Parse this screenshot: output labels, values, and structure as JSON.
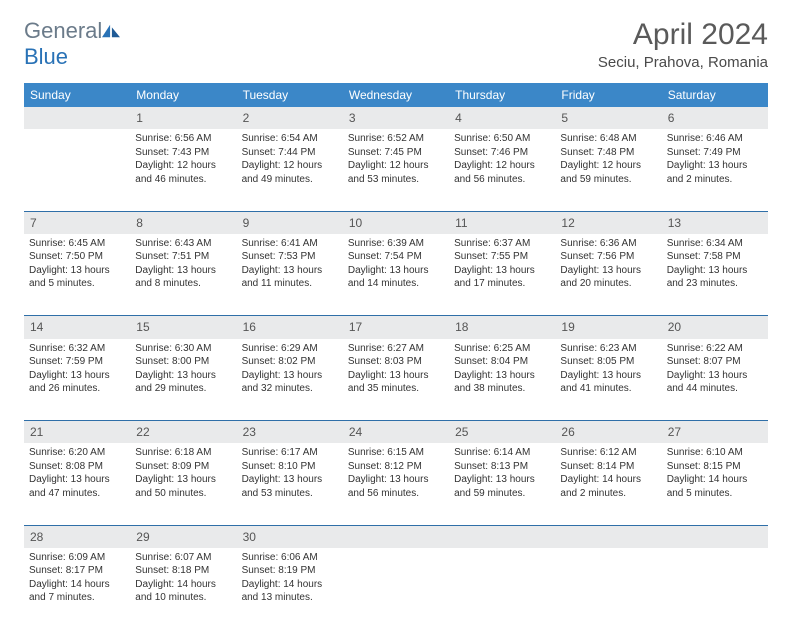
{
  "logo": {
    "word1": "General",
    "word2": "Blue"
  },
  "title": "April 2024",
  "location": "Seciu, Prahova, Romania",
  "colors": {
    "header_bg": "#3b87c8",
    "header_text": "#ffffff",
    "daynum_bg": "#e9eaeb",
    "row_border": "#2f6fa8",
    "logo_gray": "#6b7b8a",
    "logo_blue": "#2972b6",
    "title_color": "#5a5a5a"
  },
  "day_headers": [
    "Sunday",
    "Monday",
    "Tuesday",
    "Wednesday",
    "Thursday",
    "Friday",
    "Saturday"
  ],
  "weeks": [
    {
      "nums": [
        "",
        "1",
        "2",
        "3",
        "4",
        "5",
        "6"
      ],
      "cells": [
        null,
        {
          "sunrise": "6:56 AM",
          "sunset": "7:43 PM",
          "daylight": "12 hours and 46 minutes."
        },
        {
          "sunrise": "6:54 AM",
          "sunset": "7:44 PM",
          "daylight": "12 hours and 49 minutes."
        },
        {
          "sunrise": "6:52 AM",
          "sunset": "7:45 PM",
          "daylight": "12 hours and 53 minutes."
        },
        {
          "sunrise": "6:50 AM",
          "sunset": "7:46 PM",
          "daylight": "12 hours and 56 minutes."
        },
        {
          "sunrise": "6:48 AM",
          "sunset": "7:48 PM",
          "daylight": "12 hours and 59 minutes."
        },
        {
          "sunrise": "6:46 AM",
          "sunset": "7:49 PM",
          "daylight": "13 hours and 2 minutes."
        }
      ]
    },
    {
      "nums": [
        "7",
        "8",
        "9",
        "10",
        "11",
        "12",
        "13"
      ],
      "cells": [
        {
          "sunrise": "6:45 AM",
          "sunset": "7:50 PM",
          "daylight": "13 hours and 5 minutes."
        },
        {
          "sunrise": "6:43 AM",
          "sunset": "7:51 PM",
          "daylight": "13 hours and 8 minutes."
        },
        {
          "sunrise": "6:41 AM",
          "sunset": "7:53 PM",
          "daylight": "13 hours and 11 minutes."
        },
        {
          "sunrise": "6:39 AM",
          "sunset": "7:54 PM",
          "daylight": "13 hours and 14 minutes."
        },
        {
          "sunrise": "6:37 AM",
          "sunset": "7:55 PM",
          "daylight": "13 hours and 17 minutes."
        },
        {
          "sunrise": "6:36 AM",
          "sunset": "7:56 PM",
          "daylight": "13 hours and 20 minutes."
        },
        {
          "sunrise": "6:34 AM",
          "sunset": "7:58 PM",
          "daylight": "13 hours and 23 minutes."
        }
      ]
    },
    {
      "nums": [
        "14",
        "15",
        "16",
        "17",
        "18",
        "19",
        "20"
      ],
      "cells": [
        {
          "sunrise": "6:32 AM",
          "sunset": "7:59 PM",
          "daylight": "13 hours and 26 minutes."
        },
        {
          "sunrise": "6:30 AM",
          "sunset": "8:00 PM",
          "daylight": "13 hours and 29 minutes."
        },
        {
          "sunrise": "6:29 AM",
          "sunset": "8:02 PM",
          "daylight": "13 hours and 32 minutes."
        },
        {
          "sunrise": "6:27 AM",
          "sunset": "8:03 PM",
          "daylight": "13 hours and 35 minutes."
        },
        {
          "sunrise": "6:25 AM",
          "sunset": "8:04 PM",
          "daylight": "13 hours and 38 minutes."
        },
        {
          "sunrise": "6:23 AM",
          "sunset": "8:05 PM",
          "daylight": "13 hours and 41 minutes."
        },
        {
          "sunrise": "6:22 AM",
          "sunset": "8:07 PM",
          "daylight": "13 hours and 44 minutes."
        }
      ]
    },
    {
      "nums": [
        "21",
        "22",
        "23",
        "24",
        "25",
        "26",
        "27"
      ],
      "cells": [
        {
          "sunrise": "6:20 AM",
          "sunset": "8:08 PM",
          "daylight": "13 hours and 47 minutes."
        },
        {
          "sunrise": "6:18 AM",
          "sunset": "8:09 PM",
          "daylight": "13 hours and 50 minutes."
        },
        {
          "sunrise": "6:17 AM",
          "sunset": "8:10 PM",
          "daylight": "13 hours and 53 minutes."
        },
        {
          "sunrise": "6:15 AM",
          "sunset": "8:12 PM",
          "daylight": "13 hours and 56 minutes."
        },
        {
          "sunrise": "6:14 AM",
          "sunset": "8:13 PM",
          "daylight": "13 hours and 59 minutes."
        },
        {
          "sunrise": "6:12 AM",
          "sunset": "8:14 PM",
          "daylight": "14 hours and 2 minutes."
        },
        {
          "sunrise": "6:10 AM",
          "sunset": "8:15 PM",
          "daylight": "14 hours and 5 minutes."
        }
      ]
    },
    {
      "nums": [
        "28",
        "29",
        "30",
        "",
        "",
        "",
        ""
      ],
      "cells": [
        {
          "sunrise": "6:09 AM",
          "sunset": "8:17 PM",
          "daylight": "14 hours and 7 minutes."
        },
        {
          "sunrise": "6:07 AM",
          "sunset": "8:18 PM",
          "daylight": "14 hours and 10 minutes."
        },
        {
          "sunrise": "6:06 AM",
          "sunset": "8:19 PM",
          "daylight": "14 hours and 13 minutes."
        },
        null,
        null,
        null,
        null
      ]
    }
  ],
  "labels": {
    "sunrise": "Sunrise:",
    "sunset": "Sunset:",
    "daylight": "Daylight:"
  }
}
